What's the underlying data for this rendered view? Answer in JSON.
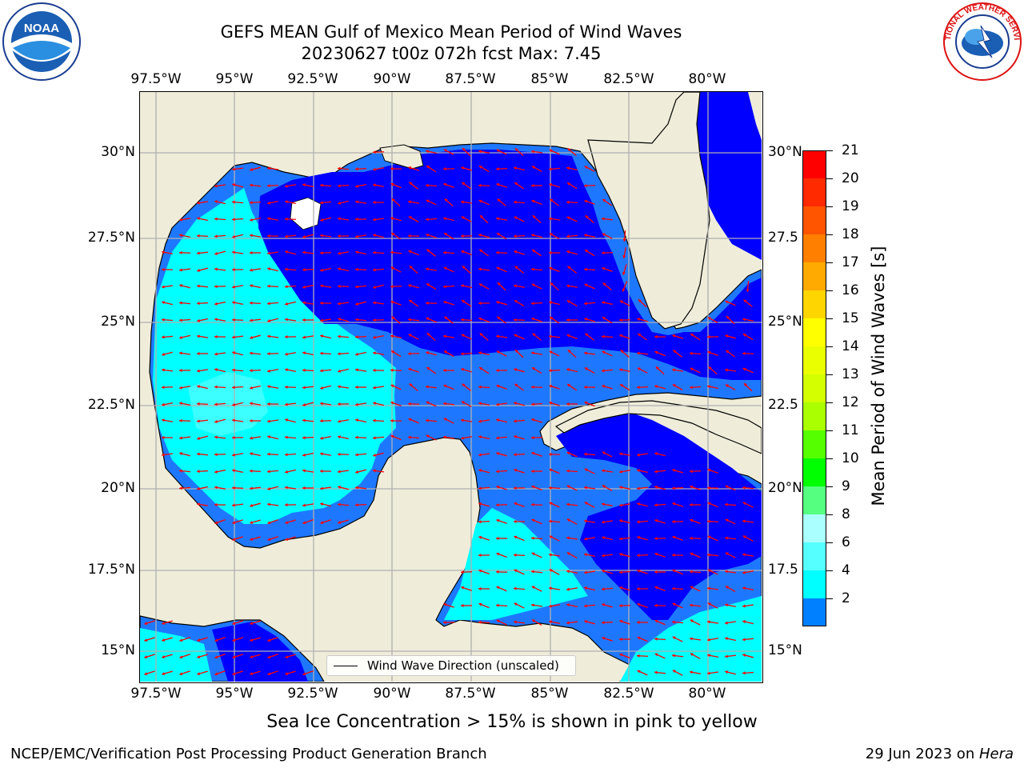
{
  "title": {
    "line1": "GEFS MEAN Gulf of Mexico Mean Period of Wind Waves",
    "line2": "20230627 t00z 072h fcst   Max: 7.45"
  },
  "lon_ticks": [
    "97.5°W",
    "95°W",
    "92.5°W",
    "90°W",
    "87.5°W",
    "85°W",
    "82.5°W",
    "80°W"
  ],
  "lat_ticks_left": [
    "30°N",
    "27.5°N",
    "25°N",
    "22.5°N",
    "20°N",
    "17.5°N",
    "15°N"
  ],
  "lat_ticks_right": [
    "30°N",
    "27.5",
    "25°N",
    "22.5",
    "20°N",
    "17.5",
    "15°N"
  ],
  "legend": {
    "label": "Wind Wave Direction (unscaled)"
  },
  "colorbar": {
    "title": "Mean Period of Wind Waves [s]",
    "labels": [
      "21",
      "20",
      "19",
      "18",
      "17",
      "16",
      "15",
      "14",
      "13",
      "12",
      "11",
      "10",
      "9",
      "8",
      "6",
      "4",
      "2"
    ],
    "colors": [
      "#ff0000",
      "#ff2a00",
      "#ff5500",
      "#ff8000",
      "#ffaa00",
      "#ffd500",
      "#ffff00",
      "#eaff00",
      "#d4ff00",
      "#aaff00",
      "#55ff00",
      "#00ff00",
      "#55ff80",
      "#aaffff",
      "#55ffff",
      "#00ffff",
      "#0080ff"
    ],
    "extend_color": "#0000ff"
  },
  "colors": {
    "land": "#efedda",
    "deep": "#0000ff",
    "mid": "#1e78ff",
    "light": "#00ffff",
    "pale": "#55ffff",
    "arrow": "#ff0000",
    "grid": "#b0b0b0"
  },
  "footer_note": "Sea Ice Concentration > 15% is shown in pink to yellow",
  "credit": "NCEP/EMC/Verification Post Processing Product Generation Branch",
  "date": {
    "text": "29 Jun 2023 on ",
    "machine": "Hera"
  },
  "logos": {
    "left": "NOAA",
    "right": "NATIONAL WEATHER SERVICE"
  }
}
